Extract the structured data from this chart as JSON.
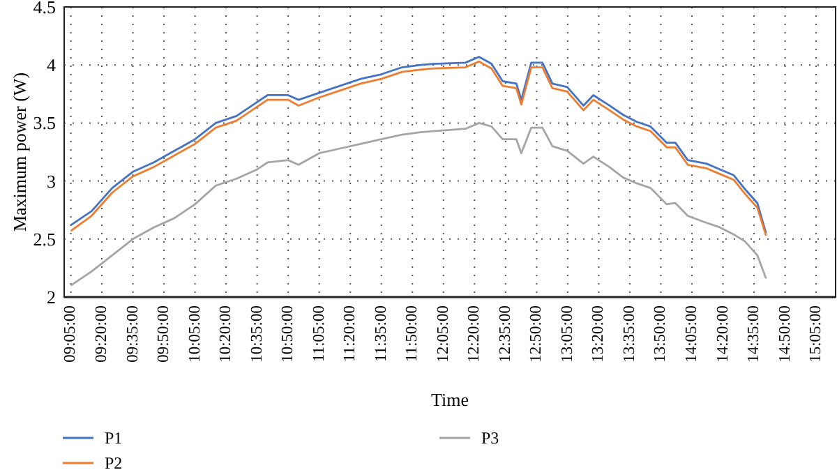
{
  "chart_data": {
    "type": "line",
    "xlabel": "Time",
    "ylabel": "Maximum power (W)",
    "x": [
      9.0833,
      9.25,
      9.4167,
      9.5833,
      9.75,
      9.9167,
      10.0833,
      10.25,
      10.4167,
      10.5833,
      10.6667,
      10.8333,
      10.9167,
      11.0833,
      11.25,
      11.4167,
      11.5833,
      11.75,
      11.9,
      12.0,
      12.26,
      12.37,
      12.47,
      12.56,
      12.67,
      12.71,
      12.79,
      12.88,
      12.96,
      13.08,
      13.21,
      13.29,
      13.42,
      13.53,
      13.64,
      13.75,
      13.88,
      13.95,
      14.05,
      14.2,
      14.31,
      14.42,
      14.51,
      14.61,
      14.68
    ],
    "series": [
      {
        "name": "P1",
        "color": "#4472c4",
        "values": [
          2.62,
          2.74,
          2.94,
          3.08,
          3.16,
          3.26,
          3.36,
          3.5,
          3.56,
          3.68,
          3.74,
          3.74,
          3.7,
          3.76,
          3.82,
          3.88,
          3.92,
          3.98,
          4.0,
          4.01,
          4.02,
          4.07,
          4.01,
          3.86,
          3.84,
          3.7,
          4.02,
          4.02,
          3.84,
          3.81,
          3.65,
          3.74,
          3.65,
          3.57,
          3.51,
          3.47,
          3.33,
          3.33,
          3.18,
          3.15,
          3.1,
          3.05,
          2.93,
          2.81,
          2.55
        ]
      },
      {
        "name": "P2",
        "color": "#ed7d31",
        "values": [
          2.57,
          2.7,
          2.9,
          3.04,
          3.12,
          3.22,
          3.32,
          3.46,
          3.52,
          3.64,
          3.7,
          3.7,
          3.65,
          3.72,
          3.78,
          3.84,
          3.88,
          3.94,
          3.96,
          3.97,
          3.98,
          4.03,
          3.97,
          3.82,
          3.8,
          3.66,
          3.98,
          3.98,
          3.8,
          3.77,
          3.61,
          3.7,
          3.61,
          3.53,
          3.47,
          3.43,
          3.29,
          3.29,
          3.14,
          3.11,
          3.06,
          3.01,
          2.89,
          2.77,
          2.53
        ]
      },
      {
        "name": "P3",
        "color": "#a5a5a5",
        "values": [
          2.1,
          2.22,
          2.36,
          2.5,
          2.6,
          2.68,
          2.8,
          2.96,
          3.02,
          3.1,
          3.16,
          3.18,
          3.14,
          3.24,
          3.28,
          3.32,
          3.36,
          3.4,
          3.42,
          3.43,
          3.45,
          3.5,
          3.47,
          3.36,
          3.36,
          3.24,
          3.46,
          3.46,
          3.3,
          3.26,
          3.15,
          3.21,
          3.12,
          3.03,
          2.98,
          2.94,
          2.8,
          2.81,
          2.7,
          2.64,
          2.6,
          2.54,
          2.48,
          2.36,
          2.16
        ]
      }
    ],
    "xlim": [
      9.03,
      15.24
    ],
    "xticks": [
      {
        "value": 9.0833,
        "label": "09:05:00"
      },
      {
        "value": 9.3333,
        "label": "09:20:00"
      },
      {
        "value": 9.5833,
        "label": "09:35:00"
      },
      {
        "value": 9.8333,
        "label": "09:50:00"
      },
      {
        "value": 10.0833,
        "label": "10:05:00"
      },
      {
        "value": 10.3333,
        "label": "10:20:00"
      },
      {
        "value": 10.5833,
        "label": "10:35:00"
      },
      {
        "value": 10.8333,
        "label": "10:50:00"
      },
      {
        "value": 11.0833,
        "label": "11:05:00"
      },
      {
        "value": 11.3333,
        "label": "11:20:00"
      },
      {
        "value": 11.5833,
        "label": "11:35:00"
      },
      {
        "value": 11.8333,
        "label": "11:50:00"
      },
      {
        "value": 12.0833,
        "label": "12:05:00"
      },
      {
        "value": 12.3333,
        "label": "12:20:00"
      },
      {
        "value": 12.5833,
        "label": "12:35:00"
      },
      {
        "value": 12.8333,
        "label": "12:50:00"
      },
      {
        "value": 13.0833,
        "label": "13:05:00"
      },
      {
        "value": 13.3333,
        "label": "13:20:00"
      },
      {
        "value": 13.5833,
        "label": "13:35:00"
      },
      {
        "value": 13.8333,
        "label": "13:50:00"
      },
      {
        "value": 14.0833,
        "label": "14:05:00"
      },
      {
        "value": 14.3333,
        "label": "14:20:00"
      },
      {
        "value": 14.5833,
        "label": "14:35:00"
      },
      {
        "value": 14.8333,
        "label": "14:50:00"
      },
      {
        "value": 15.0833,
        "label": "15:05:00"
      }
    ],
    "ylim": [
      2,
      4.5
    ],
    "yticks": [
      2,
      2.5,
      3,
      3.5,
      4,
      4.5
    ],
    "grid": true,
    "legend": "bottom",
    "marker": "none",
    "line_style": "solid"
  }
}
